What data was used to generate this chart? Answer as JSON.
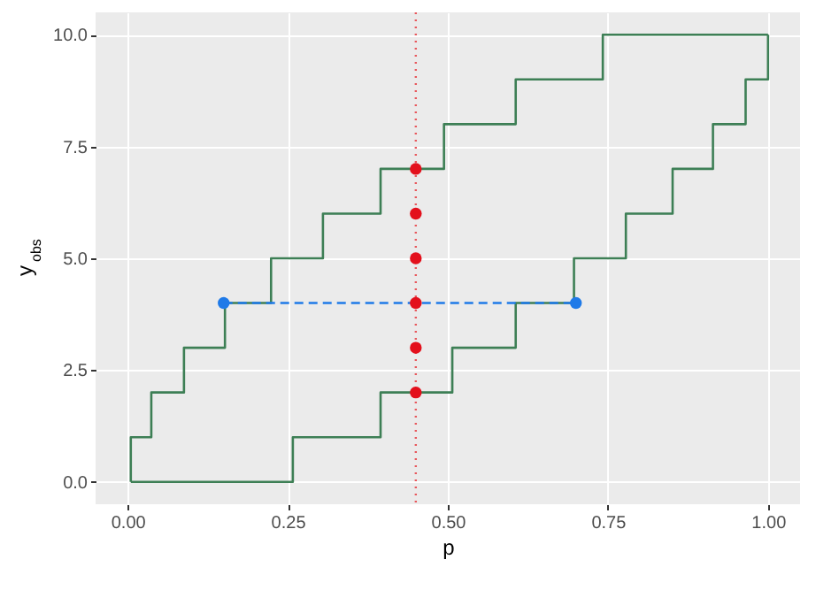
{
  "chart_data": {
    "type": "step",
    "xlabel": "p",
    "ylabel": "y$_{obs}$",
    "xlim": [
      -0.05,
      1.05
    ],
    "ylim": [
      -0.5,
      10.5
    ],
    "xticks": [
      {
        "value": 0,
        "label": "0.00"
      },
      {
        "value": 0.25,
        "label": "0.25"
      },
      {
        "value": 0.5,
        "label": "0.50"
      },
      {
        "value": 0.75,
        "label": "0.75"
      },
      {
        "value": 1,
        "label": "1.00"
      }
    ],
    "yticks": [
      {
        "value": 0,
        "label": "0.0"
      },
      {
        "value": 2.5,
        "label": "2.5"
      },
      {
        "value": 5,
        "label": "5.0"
      },
      {
        "value": 7.5,
        "label": "7.5"
      },
      {
        "value": 10,
        "label": "10.0"
      }
    ],
    "grid": true,
    "series": [
      {
        "color": "#3d7f55",
        "x": [
          0.005,
          0.005,
          0.037,
          0.088,
          0.152,
          0.224,
          0.305,
          0.395,
          0.494,
          0.606,
          0.742,
          1.0
        ],
        "values": [
          0,
          1,
          2,
          3,
          4,
          5,
          6,
          7,
          8,
          9,
          10,
          10
        ]
      },
      {
        "color": "#3d7f55",
        "x": [
          0.005,
          0.258,
          0.395,
          0.507,
          0.606,
          0.697,
          0.778,
          0.851,
          0.914,
          0.965,
          1.0
        ],
        "values": [
          0,
          1,
          2,
          3,
          4,
          5,
          6,
          7,
          8,
          9,
          10
        ]
      },
      {
        "type": "line",
        "color": "#1f7ae8",
        "line_style": "dashed",
        "marker": "circle",
        "x": [
          0.15,
          0.7
        ],
        "values": [
          4,
          4
        ]
      },
      {
        "type": "scatter",
        "color": "#e3101c",
        "marker": "circle",
        "x": [
          0.45,
          0.45,
          0.45,
          0.45,
          0.45,
          0.45
        ],
        "values": [
          2,
          3,
          4,
          5,
          6,
          7
        ]
      }
    ],
    "ref_lines": [
      {
        "axis": "x",
        "value": 0.45,
        "color": "#e8585d",
        "line_style": "dotted"
      }
    ]
  }
}
